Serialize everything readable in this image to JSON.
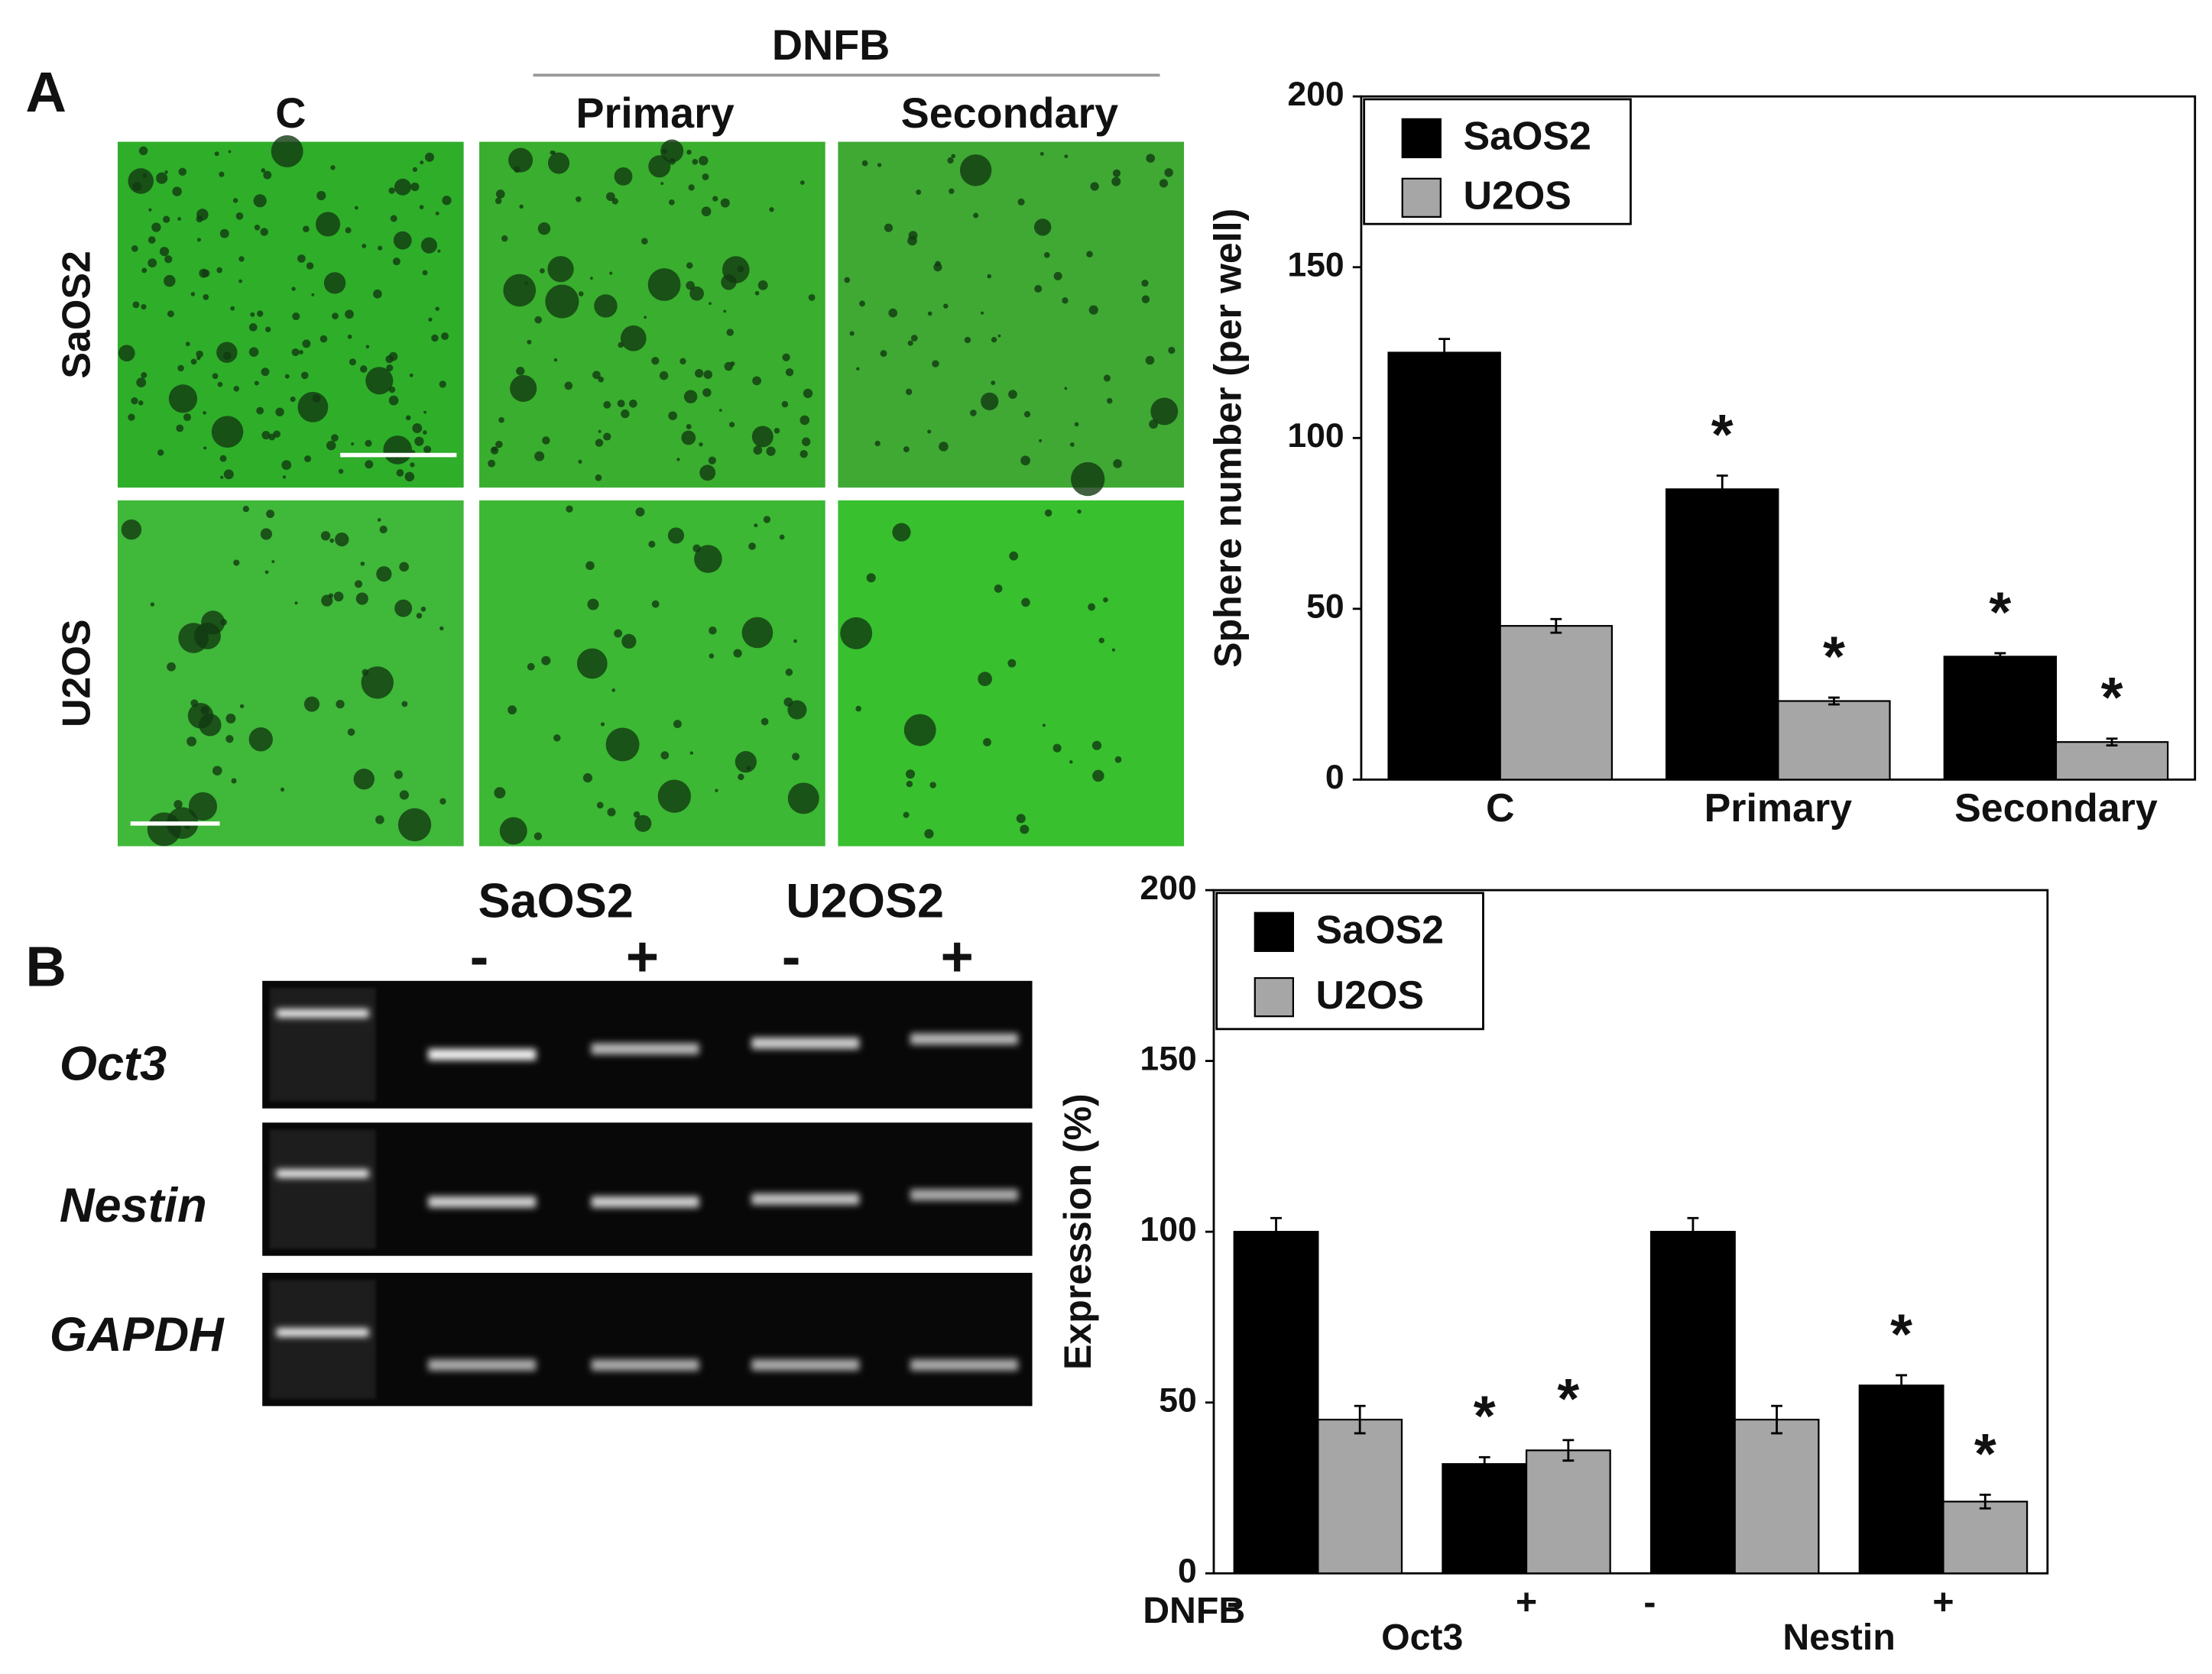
{
  "figure": {
    "panel_a": "A",
    "panel_b": "B",
    "micrographs": {
      "header": "DNFB",
      "columns": [
        "C",
        "Primary",
        "Secondary"
      ],
      "rows": [
        "SaOS2",
        "U2OS"
      ]
    },
    "gel": {
      "cell_lines": [
        "SaOS2",
        "U2OS2"
      ],
      "treatments": [
        "-",
        "+",
        "-",
        "+"
      ],
      "genes": [
        "Oct3",
        "Nestin",
        "GAPDH"
      ]
    }
  },
  "chart_data": [
    {
      "type": "bar",
      "ylabel": "Sphere number (per well)",
      "categories": [
        "C",
        "Primary",
        "Secondary"
      ],
      "series": [
        {
          "name": "SaOS2",
          "color": "#000000",
          "values": [
            125,
            85,
            36
          ],
          "errors": [
            4,
            4,
            1
          ]
        },
        {
          "name": "U2OS",
          "color": "#a6a6a6",
          "values": [
            45,
            23,
            11
          ],
          "errors": [
            2,
            1,
            1
          ]
        }
      ],
      "annotations": [
        {
          "text": "*",
          "series": 0,
          "category": 1
        },
        {
          "text": "*",
          "series": 0,
          "category": 2
        },
        {
          "text": "*",
          "series": 1,
          "category": 1
        },
        {
          "text": "*",
          "series": 1,
          "category": 2
        }
      ],
      "ylim": [
        0,
        200
      ],
      "yticks": [
        0,
        50,
        100,
        150,
        200
      ],
      "legend": "upper left"
    },
    {
      "type": "bar",
      "ylabel": "Expression (%)",
      "xlabel": "DNFB",
      "categories": [
        "-",
        "+",
        "-",
        "+"
      ],
      "groups": [
        "Oct3",
        "Nestin"
      ],
      "series": [
        {
          "name": "SaOS2",
          "color": "#000000",
          "values": [
            100,
            32,
            100,
            55
          ],
          "errors": [
            4,
            2,
            4,
            3
          ]
        },
        {
          "name": "U2OS",
          "color": "#a6a6a6",
          "values": [
            45,
            36,
            45,
            21
          ],
          "errors": [
            4,
            3,
            4,
            2
          ]
        }
      ],
      "annotations": [
        {
          "text": "*",
          "series": 0,
          "category": 1
        },
        {
          "text": "*",
          "series": 0,
          "category": 3
        },
        {
          "text": "*",
          "series": 1,
          "category": 1
        },
        {
          "text": "*",
          "series": 1,
          "category": 3
        }
      ],
      "ylim": [
        0,
        200
      ],
      "yticks": [
        0,
        50,
        100,
        150,
        200
      ],
      "legend": "upper left"
    }
  ]
}
